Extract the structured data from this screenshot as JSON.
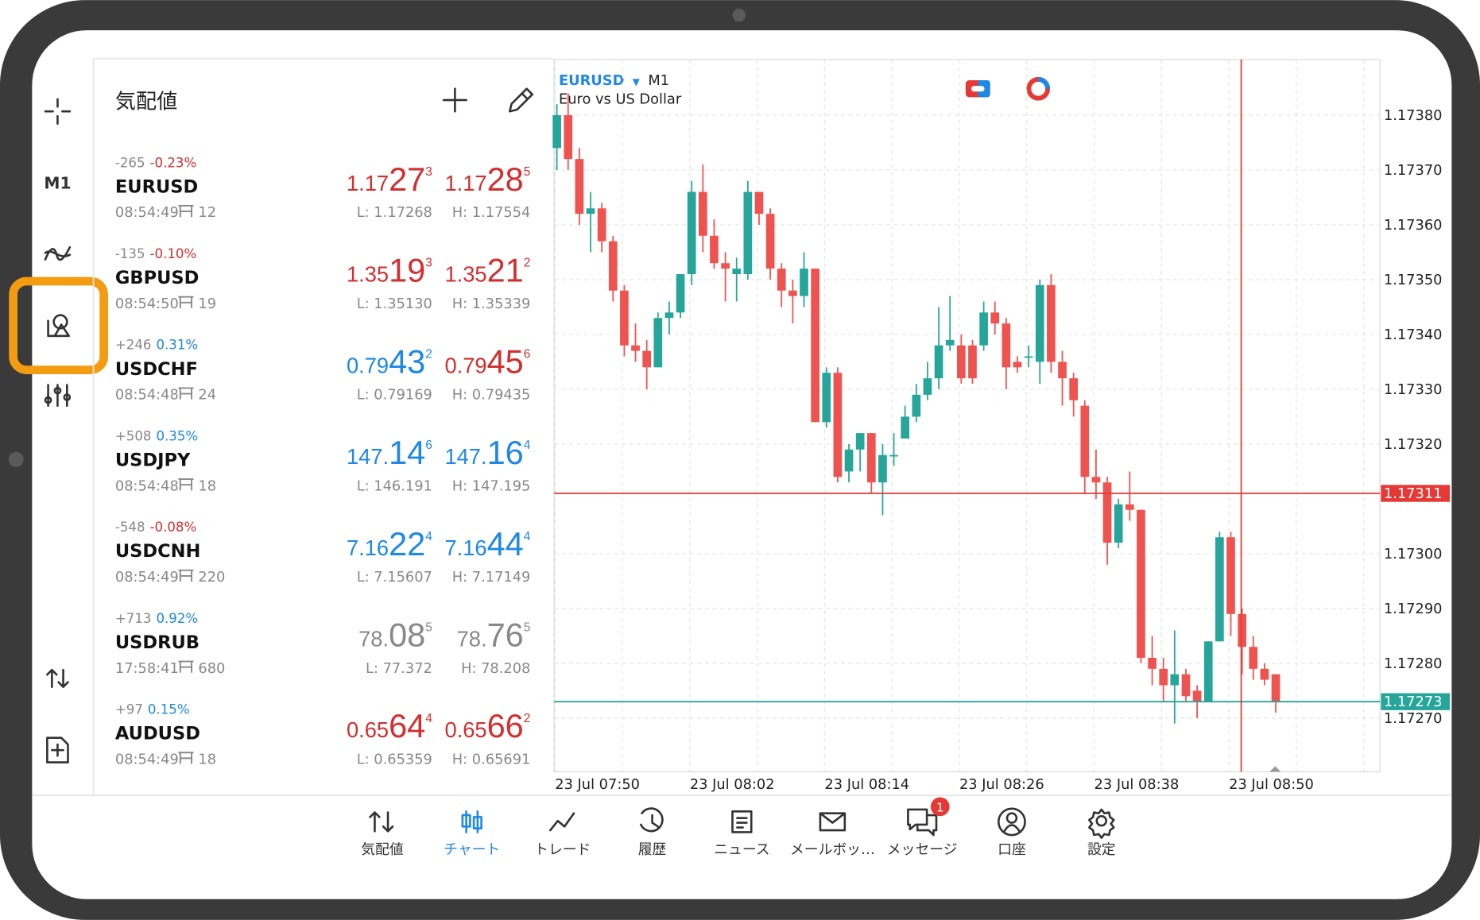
{
  "sidebar": {
    "timeframe": "M1"
  },
  "quotes_panel": {
    "title": "気配値",
    "quotes": [
      {
        "change": "-265",
        "pct": "-0.23%",
        "pct_color": "#d32f2f",
        "symbol": "EURUSD",
        "time": "08:54:49",
        "spread": "12",
        "bid": [
          "1.17",
          "27",
          "3"
        ],
        "bid_color": "#d32f2f",
        "ask": [
          "1.17",
          "28",
          "5"
        ],
        "ask_color": "#d32f2f",
        "low": "L: 1.17268",
        "high": "H: 1.17554"
      },
      {
        "change": "-135",
        "pct": "-0.10%",
        "pct_color": "#d32f2f",
        "symbol": "GBPUSD",
        "time": "08:54:50",
        "spread": "19",
        "bid": [
          "1.35",
          "19",
          "3"
        ],
        "bid_color": "#d32f2f",
        "ask": [
          "1.35",
          "21",
          "2"
        ],
        "ask_color": "#d32f2f",
        "low": "L: 1.35130",
        "high": "H: 1.35339"
      },
      {
        "change": "+246",
        "pct": "0.31%",
        "pct_color": "#1e88e5",
        "symbol": "USDCHF",
        "time": "08:54:48",
        "spread": "24",
        "bid": [
          "0.79",
          "43",
          "2"
        ],
        "bid_color": "#1e88e5",
        "ask": [
          "0.79",
          "45",
          "6"
        ],
        "ask_color": "#d32f2f",
        "low": "L: 0.79169",
        "high": "H: 0.79435"
      },
      {
        "change": "+508",
        "pct": "0.35%",
        "pct_color": "#1e88e5",
        "symbol": "USDJPY",
        "time": "08:54:48",
        "spread": "18",
        "bid": [
          "147.",
          "14",
          "6"
        ],
        "bid_color": "#1e88e5",
        "ask": [
          "147.",
          "16",
          "4"
        ],
        "ask_color": "#1e88e5",
        "low": "L: 146.191",
        "high": "H: 147.195"
      },
      {
        "change": "-548",
        "pct": "-0.08%",
        "pct_color": "#d32f2f",
        "symbol": "USDCNH",
        "time": "08:54:49",
        "spread": "220",
        "bid": [
          "7.16",
          "22",
          "4"
        ],
        "bid_color": "#1e88e5",
        "ask": [
          "7.16",
          "44",
          "4"
        ],
        "ask_color": "#1e88e5",
        "low": "L: 7.15607",
        "high": "H: 7.17149"
      },
      {
        "change": "+713",
        "pct": "0.92%",
        "pct_color": "#1e88e5",
        "symbol": "USDRUB",
        "time": "17:58:41",
        "spread": "680",
        "bid": [
          "78.",
          "08",
          "5"
        ],
        "bid_color": "#888888",
        "ask": [
          "78.",
          "76",
          "5"
        ],
        "ask_color": "#888888",
        "low": "L: 77.372",
        "high": "H: 78.208"
      },
      {
        "change": "+97",
        "pct": "0.15%",
        "pct_color": "#1e88e5",
        "symbol": "AUDUSD",
        "time": "08:54:49",
        "spread": "18",
        "bid": [
          "0.65",
          "64",
          "4"
        ],
        "bid_color": "#d32f2f",
        "ask": [
          "0.65",
          "66",
          "2"
        ],
        "ask_color": "#d32f2f",
        "low": "L: 0.65359",
        "high": "H: 0.65691"
      }
    ]
  },
  "chart_data": {
    "type": "candlestick",
    "symbol": "EURUSD",
    "timeframe": "M1",
    "description": "Euro vs US Dollar",
    "up_color": "#26a69a",
    "down_color": "#ef5350",
    "xtick_labels": [
      "23 Jul 07:50",
      "23 Jul 08:02",
      "23 Jul 08:14",
      "23 Jul 08:26",
      "23 Jul 08:38",
      "23 Jul 08:50"
    ],
    "ylim": [
      1.17262,
      1.17384
    ],
    "yticks": [
      {
        "value": 1.1738,
        "label": "1.17380"
      },
      {
        "value": 1.1737,
        "label": "1.17370"
      },
      {
        "value": 1.1736,
        "label": "1.17360"
      },
      {
        "value": 1.1735,
        "label": "1.17350"
      },
      {
        "value": 1.1734,
        "label": "1.17340"
      },
      {
        "value": 1.1733,
        "label": "1.17330"
      },
      {
        "value": 1.1732,
        "label": "1.17320"
      },
      {
        "value": 1.173,
        "label": "1.17300"
      },
      {
        "value": 1.1729,
        "label": "1.17290"
      },
      {
        "value": 1.1728,
        "label": "1.17280"
      },
      {
        "value": 1.1727,
        "label": "1.17270"
      }
    ],
    "grid": true,
    "price_lines": [
      {
        "value": 1.17311,
        "color": "#e53935"
      },
      {
        "value": 1.17273,
        "color": "#26a69a"
      }
    ],
    "candles": [
      [
        1.17374,
        1.17382,
        1.1737,
        1.1738
      ],
      [
        1.1738,
        1.17384,
        1.1737,
        1.17372
      ],
      [
        1.17372,
        1.17374,
        1.1736,
        1.17362
      ],
      [
        1.17362,
        1.17366,
        1.17355,
        1.17363
      ],
      [
        1.17363,
        1.17364,
        1.17355,
        1.17357
      ],
      [
        1.17357,
        1.17358,
        1.17346,
        1.17348
      ],
      [
        1.17348,
        1.17349,
        1.17336,
        1.17338
      ],
      [
        1.17338,
        1.17342,
        1.17335,
        1.17337
      ],
      [
        1.17337,
        1.17339,
        1.1733,
        1.17334
      ],
      [
        1.17334,
        1.17344,
        1.17334,
        1.17343
      ],
      [
        1.17343,
        1.17346,
        1.1734,
        1.17344
      ],
      [
        1.17344,
        1.17351,
        1.17343,
        1.17351
      ],
      [
        1.17351,
        1.17368,
        1.17349,
        1.17366
      ],
      [
        1.17366,
        1.17371,
        1.17355,
        1.17358
      ],
      [
        1.17358,
        1.17361,
        1.17352,
        1.17353
      ],
      [
        1.17353,
        1.17355,
        1.17346,
        1.17352
      ],
      [
        1.17351,
        1.17354,
        1.17346,
        1.17352
      ],
      [
        1.17351,
        1.17368,
        1.1735,
        1.17366
      ],
      [
        1.17366,
        1.17366,
        1.1736,
        1.17362
      ],
      [
        1.17362,
        1.17363,
        1.1735,
        1.17352
      ],
      [
        1.17352,
        1.17353,
        1.17345,
        1.17348
      ],
      [
        1.17348,
        1.1735,
        1.17342,
        1.17347
      ],
      [
        1.17347,
        1.17355,
        1.17345,
        1.17352
      ],
      [
        1.17352,
        1.17352,
        1.17324,
        1.17324
      ],
      [
        1.17324,
        1.17334,
        1.17323,
        1.17333
      ],
      [
        1.17333,
        1.17334,
        1.17313,
        1.17314
      ],
      [
        1.17315,
        1.1732,
        1.17313,
        1.17319
      ],
      [
        1.17319,
        1.17322,
        1.17315,
        1.17322
      ],
      [
        1.17322,
        1.17322,
        1.17311,
        1.17313
      ],
      [
        1.17313,
        1.1732,
        1.17307,
        1.17318
      ],
      [
        1.17318,
        1.17322,
        1.17316,
        1.17318
      ],
      [
        1.17321,
        1.17327,
        1.17321,
        1.17325
      ],
      [
        1.17325,
        1.17331,
        1.17324,
        1.17329
      ],
      [
        1.17329,
        1.17335,
        1.17328,
        1.17332
      ],
      [
        1.17332,
        1.17345,
        1.1733,
        1.17338
      ],
      [
        1.17338,
        1.17347,
        1.17337,
        1.17339
      ],
      [
        1.17338,
        1.1734,
        1.17331,
        1.17332
      ],
      [
        1.17338,
        1.17339,
        1.17331,
        1.17332
      ],
      [
        1.17338,
        1.17346,
        1.17337,
        1.17344
      ],
      [
        1.17344,
        1.17346,
        1.1734,
        1.17342
      ],
      [
        1.17342,
        1.17343,
        1.1733,
        1.17334
      ],
      [
        1.17335,
        1.17336,
        1.17333,
        1.17334
      ],
      [
        1.17336,
        1.17338,
        1.17334,
        1.17336
      ],
      [
        1.17335,
        1.1735,
        1.17331,
        1.17349
      ],
      [
        1.17349,
        1.17351,
        1.17333,
        1.17335
      ],
      [
        1.17335,
        1.17337,
        1.17327,
        1.17332
      ],
      [
        1.17332,
        1.17333,
        1.17325,
        1.17328
      ],
      [
        1.17327,
        1.17328,
        1.17311,
        1.17314
      ],
      [
        1.17314,
        1.17319,
        1.1731,
        1.17313
      ],
      [
        1.17313,
        1.17314,
        1.17298,
        1.17302
      ],
      [
        1.17302,
        1.1731,
        1.17301,
        1.17309
      ],
      [
        1.17309,
        1.17315,
        1.17306,
        1.17308
      ],
      [
        1.17308,
        1.17308,
        1.1728,
        1.17281
      ],
      [
        1.17281,
        1.17285,
        1.17276,
        1.17279
      ],
      [
        1.17279,
        1.17281,
        1.17273,
        1.17276
      ],
      [
        1.17276,
        1.17286,
        1.17269,
        1.17278
      ],
      [
        1.17278,
        1.17279,
        1.17273,
        1.17274
      ],
      [
        1.17275,
        1.17276,
        1.1727,
        1.17273
      ],
      [
        1.17273,
        1.17284,
        1.17273,
        1.17284
      ],
      [
        1.17284,
        1.17304,
        1.17284,
        1.17303
      ],
      [
        1.17303,
        1.17304,
        1.17285,
        1.17289
      ],
      [
        1.17289,
        1.1729,
        1.17278,
        1.17283
      ],
      [
        1.17283,
        1.17285,
        1.17277,
        1.17279
      ],
      [
        1.17279,
        1.1728,
        1.17276,
        1.17277
      ],
      [
        1.17278,
        1.17278,
        1.17271,
        1.17273
      ]
    ]
  },
  "nav": {
    "active": 1,
    "badge": "1",
    "items": [
      "気配値",
      "チャート",
      "トレード",
      "履歴",
      "ニュース",
      "メールボッ…",
      "メッセージ",
      "口座",
      "設定"
    ]
  }
}
